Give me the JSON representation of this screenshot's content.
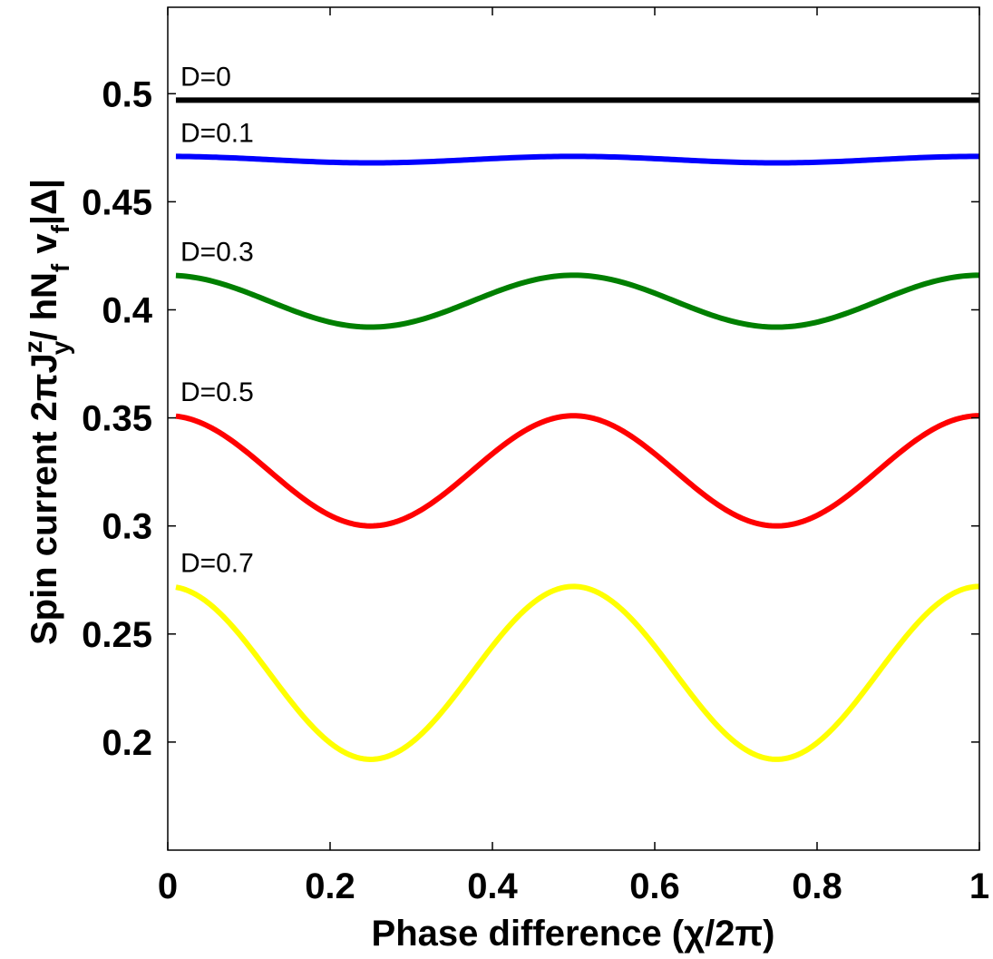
{
  "chart_data": {
    "type": "line",
    "title": "",
    "xlabel": "Phase difference (χ/2π)",
    "ylabel": "Spin current 2πJ_y^z / hN_f v_f|Δ|",
    "ylabel_parts": {
      "prefix": "Spin current 2π",
      "J": "J",
      "J_sup": "z",
      "J_sub": "y",
      "slash": "/ hN",
      "N_sub": "f",
      "v": " v",
      "v_sub": "f",
      "suffix": "|Δ|"
    },
    "xlim": [
      0,
      1
    ],
    "ylim": [
      0.15,
      0.54
    ],
    "xticks": [
      0,
      0.2,
      0.4,
      0.6,
      0.8,
      1
    ],
    "xtick_labels": [
      "0",
      "0.2",
      "0.4",
      "0.6",
      "0.8",
      "1"
    ],
    "yticks": [
      0.2,
      0.25,
      0.3,
      0.35,
      0.4,
      0.45,
      0.5
    ],
    "ytick_labels": [
      "0.2",
      "0.25",
      "0.3",
      "0.35",
      "0.4",
      "0.45",
      "0.5"
    ],
    "grid": false,
    "x_range_of_series": [
      0.01,
      1.0
    ],
    "series": [
      {
        "name": "D=0",
        "color": "#000000",
        "max": 0.497,
        "min": 0.497
      },
      {
        "name": "D=0.1",
        "color": "#0000ff",
        "max": 0.471,
        "min": 0.468
      },
      {
        "name": "D=0.3",
        "color": "#007f00",
        "max": 0.416,
        "min": 0.392
      },
      {
        "name": "D=0.5",
        "color": "#ff0000",
        "max": 0.351,
        "min": 0.3
      },
      {
        "name": "D=0.7",
        "color": "#ffff00",
        "max": 0.272,
        "min": 0.192
      }
    ],
    "curve_form": "y = min + (max - min) * cos^2(2*pi*x)"
  }
}
